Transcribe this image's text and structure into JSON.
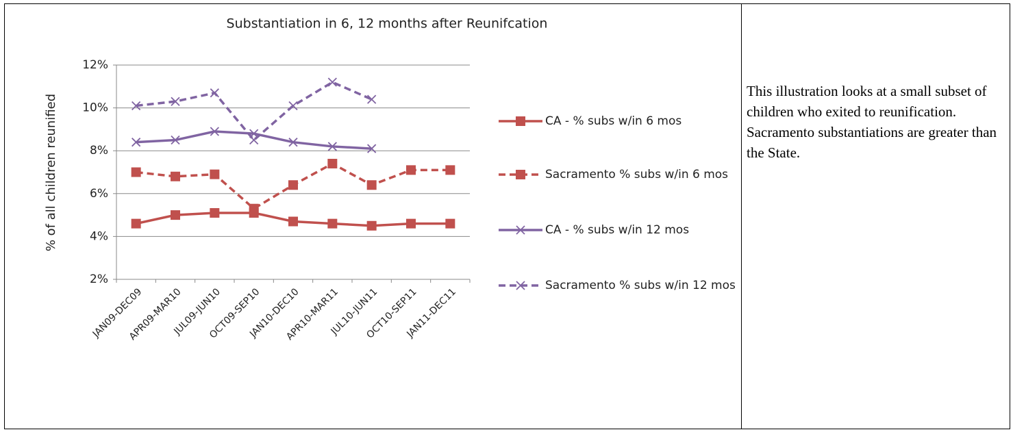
{
  "chart_data": {
    "type": "line",
    "title": "Substantiation in 6, 12 months after Reunifcation",
    "y_label": "% of all children reunified",
    "categories": [
      "JAN09-DEC09",
      "APR09-MAR10",
      "JUL09-JUN10",
      "OCT09-SEP10",
      "JAN10-DEC10",
      "APR10-MAR11",
      "JUL10-JUN11",
      "OCT10-SEP11",
      "JAN11-DEC11"
    ],
    "series": [
      {
        "name": "CA - % subs w/in 6 mos",
        "color": "#c0504d",
        "marker": "square",
        "dash": false,
        "values": [
          4.6,
          5.0,
          5.1,
          5.1,
          4.7,
          4.6,
          4.5,
          4.6,
          4.6
        ]
      },
      {
        "name": "Sacramento % subs w/in 6 mos",
        "color": "#c0504d",
        "marker": "square",
        "dash": true,
        "values": [
          7.0,
          6.8,
          6.9,
          5.3,
          6.4,
          7.4,
          6.4,
          7.1,
          7.1
        ]
      },
      {
        "name": "CA - % subs w/in 12 mos",
        "color": "#8064a2",
        "marker": "x",
        "dash": false,
        "values": [
          8.4,
          8.5,
          8.9,
          8.8,
          8.4,
          8.2,
          8.1,
          null,
          null
        ]
      },
      {
        "name": "Sacramento % subs w/in 12 mos",
        "color": "#8064a2",
        "marker": "x",
        "dash": true,
        "values": [
          10.1,
          10.3,
          10.7,
          8.5,
          10.1,
          11.2,
          10.4,
          null,
          null
        ]
      }
    ],
    "ylim": [
      2,
      12
    ],
    "yticks": [
      {
        "value": 2,
        "label": "2%"
      },
      {
        "value": 4,
        "label": "4%"
      },
      {
        "value": 6,
        "label": "6%"
      },
      {
        "value": 8,
        "label": "8%"
      },
      {
        "value": 10,
        "label": "10%"
      },
      {
        "value": 12,
        "label": "12%"
      }
    ],
    "grid": true,
    "legend": "right"
  },
  "note": "This illustration looks at a small subset of children who exited to reunification.  Sacramento substantiations are greater than the State."
}
